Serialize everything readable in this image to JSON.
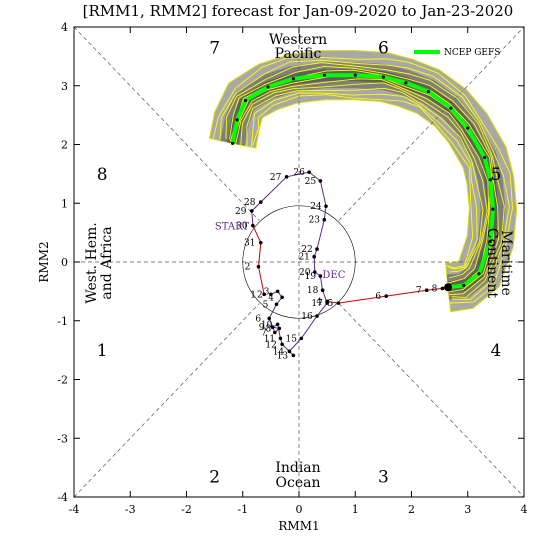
{
  "chart_data": {
    "type": "line",
    "title": "[RMM1, RMM2] forecast for Jan-09-2020 to Jan-23-2020",
    "xlabel": "RMM1",
    "ylabel": "RMM2",
    "xlim": [
      -4,
      4
    ],
    "ylim": [
      -4,
      4
    ],
    "xticks": [
      "-4",
      "-3",
      "-2",
      "-1",
      "0",
      "1",
      "2",
      "3",
      "4"
    ],
    "yticks": [
      "-4",
      "-3",
      "-2",
      "-1",
      "0",
      "1",
      "2",
      "3",
      "4"
    ],
    "phase_numbers": [
      {
        "label": "1",
        "x": -3.5,
        "y": -1.5
      },
      {
        "label": "2",
        "x": -1.5,
        "y": -3.65
      },
      {
        "label": "3",
        "x": 1.5,
        "y": -3.65
      },
      {
        "label": "4",
        "x": 3.5,
        "y": -1.5
      },
      {
        "label": "5",
        "x": 3.5,
        "y": 1.5
      },
      {
        "label": "6",
        "x": 1.5,
        "y": 3.65
      },
      {
        "label": "7",
        "x": -1.5,
        "y": 3.65
      },
      {
        "label": "8",
        "x": -3.5,
        "y": 1.5
      }
    ],
    "region_labels": {
      "western_pacific": [
        "Western",
        "Pacific"
      ],
      "indian_ocean": [
        "Indian",
        "Ocean"
      ],
      "west_hem": [
        "West. Hem.",
        "and Africa"
      ],
      "maritime": [
        "Maritime",
        "Continent"
      ]
    },
    "month_labels": {
      "start": "START",
      "dec": "DEC"
    },
    "legend": {
      "label": "NCEP GEFS",
      "position": "top-right",
      "color": "#00ff00"
    },
    "observed": {
      "name": "observed",
      "points": [
        {
          "d": "1",
          "x": -0.62,
          "y": -0.55
        },
        {
          "d": "2",
          "x": -0.72,
          "y": -0.08
        },
        {
          "d": "31",
          "x": -0.68,
          "y": 0.33
        },
        {
          "d": "30",
          "x": -0.82,
          "y": 0.62
        },
        {
          "d": "29",
          "x": -0.84,
          "y": 0.87
        },
        {
          "d": "28",
          "x": -0.68,
          "y": 1.02
        },
        {
          "d": "27",
          "x": -0.22,
          "y": 1.45
        },
        {
          "d": "26",
          "x": 0.18,
          "y": 1.53
        },
        {
          "d": "25",
          "x": 0.38,
          "y": 1.38
        },
        {
          "d": "24",
          "x": 0.48,
          "y": 0.95
        },
        {
          "d": "23",
          "x": 0.45,
          "y": 0.72
        },
        {
          "d": "22",
          "x": 0.32,
          "y": 0.22
        },
        {
          "d": "21",
          "x": 0.27,
          "y": 0.09
        },
        {
          "d": "20",
          "x": 0.28,
          "y": -0.17
        },
        {
          "d": "19",
          "x": 0.38,
          "y": -0.24
        },
        {
          "d": "18",
          "x": 0.42,
          "y": -0.48
        },
        {
          "d": "17",
          "x": 0.5,
          "y": -0.7
        },
        {
          "d": "16",
          "x": 0.32,
          "y": -0.92
        },
        {
          "d": "15",
          "x": 0.04,
          "y": -1.3
        },
        {
          "d": "14",
          "x": -0.17,
          "y": -1.52
        },
        {
          "d": "13",
          "x": -0.1,
          "y": -1.59
        },
        {
          "d": "12",
          "x": -0.3,
          "y": -1.4
        },
        {
          "d": "11",
          "x": -0.33,
          "y": -1.3
        },
        {
          "d": "10",
          "x": -0.38,
          "y": -1.06
        },
        {
          "d": "9",
          "x": -0.47,
          "y": -1.11
        },
        {
          "d": "8",
          "x": -0.35,
          "y": -1.13
        },
        {
          "d": "7",
          "x": -0.43,
          "y": -1.2
        },
        {
          "d": "6",
          "x": -0.53,
          "y": -0.96
        },
        {
          "d": "5",
          "x": -0.4,
          "y": -0.72
        },
        {
          "d": "4",
          "x": -0.3,
          "y": -0.6
        },
        {
          "d": "3",
          "x": -0.38,
          "y": -0.5
        },
        {
          "d": "2b",
          "x": -0.5,
          "y": -0.55
        }
      ],
      "start_index": 3,
      "dec_index": 14
    },
    "obs_to_forecast": {
      "color": "#cc0000",
      "points": [
        {
          "d": "4",
          "x": 0.5,
          "y": -0.67
        },
        {
          "d": "5",
          "x": 0.7,
          "y": -0.7
        },
        {
          "d": "6",
          "x": 1.55,
          "y": -0.58
        },
        {
          "d": "7",
          "x": 2.27,
          "y": -0.48
        },
        {
          "d": "8",
          "x": 2.55,
          "y": -0.45
        },
        {
          "d": "9",
          "x": 2.65,
          "y": -0.43
        }
      ]
    },
    "ensemble_mean": [
      [
        2.65,
        -0.43
      ],
      [
        2.93,
        -0.4
      ],
      [
        3.2,
        -0.2
      ],
      [
        3.4,
        0.35
      ],
      [
        3.45,
        0.9
      ],
      [
        3.4,
        1.4
      ],
      [
        3.3,
        1.78
      ],
      [
        3.0,
        2.28
      ],
      [
        2.7,
        2.62
      ],
      [
        2.3,
        2.9
      ],
      [
        1.9,
        3.05
      ],
      [
        1.5,
        3.15
      ],
      [
        1.0,
        3.18
      ],
      [
        0.45,
        3.18
      ],
      [
        -0.1,
        3.12
      ],
      [
        -0.55,
        2.98
      ],
      [
        -0.95,
        2.75
      ],
      [
        -1.1,
        2.42
      ],
      [
        -1.18,
        2.02
      ]
    ],
    "legend_line": "NCEP GEFS"
  }
}
